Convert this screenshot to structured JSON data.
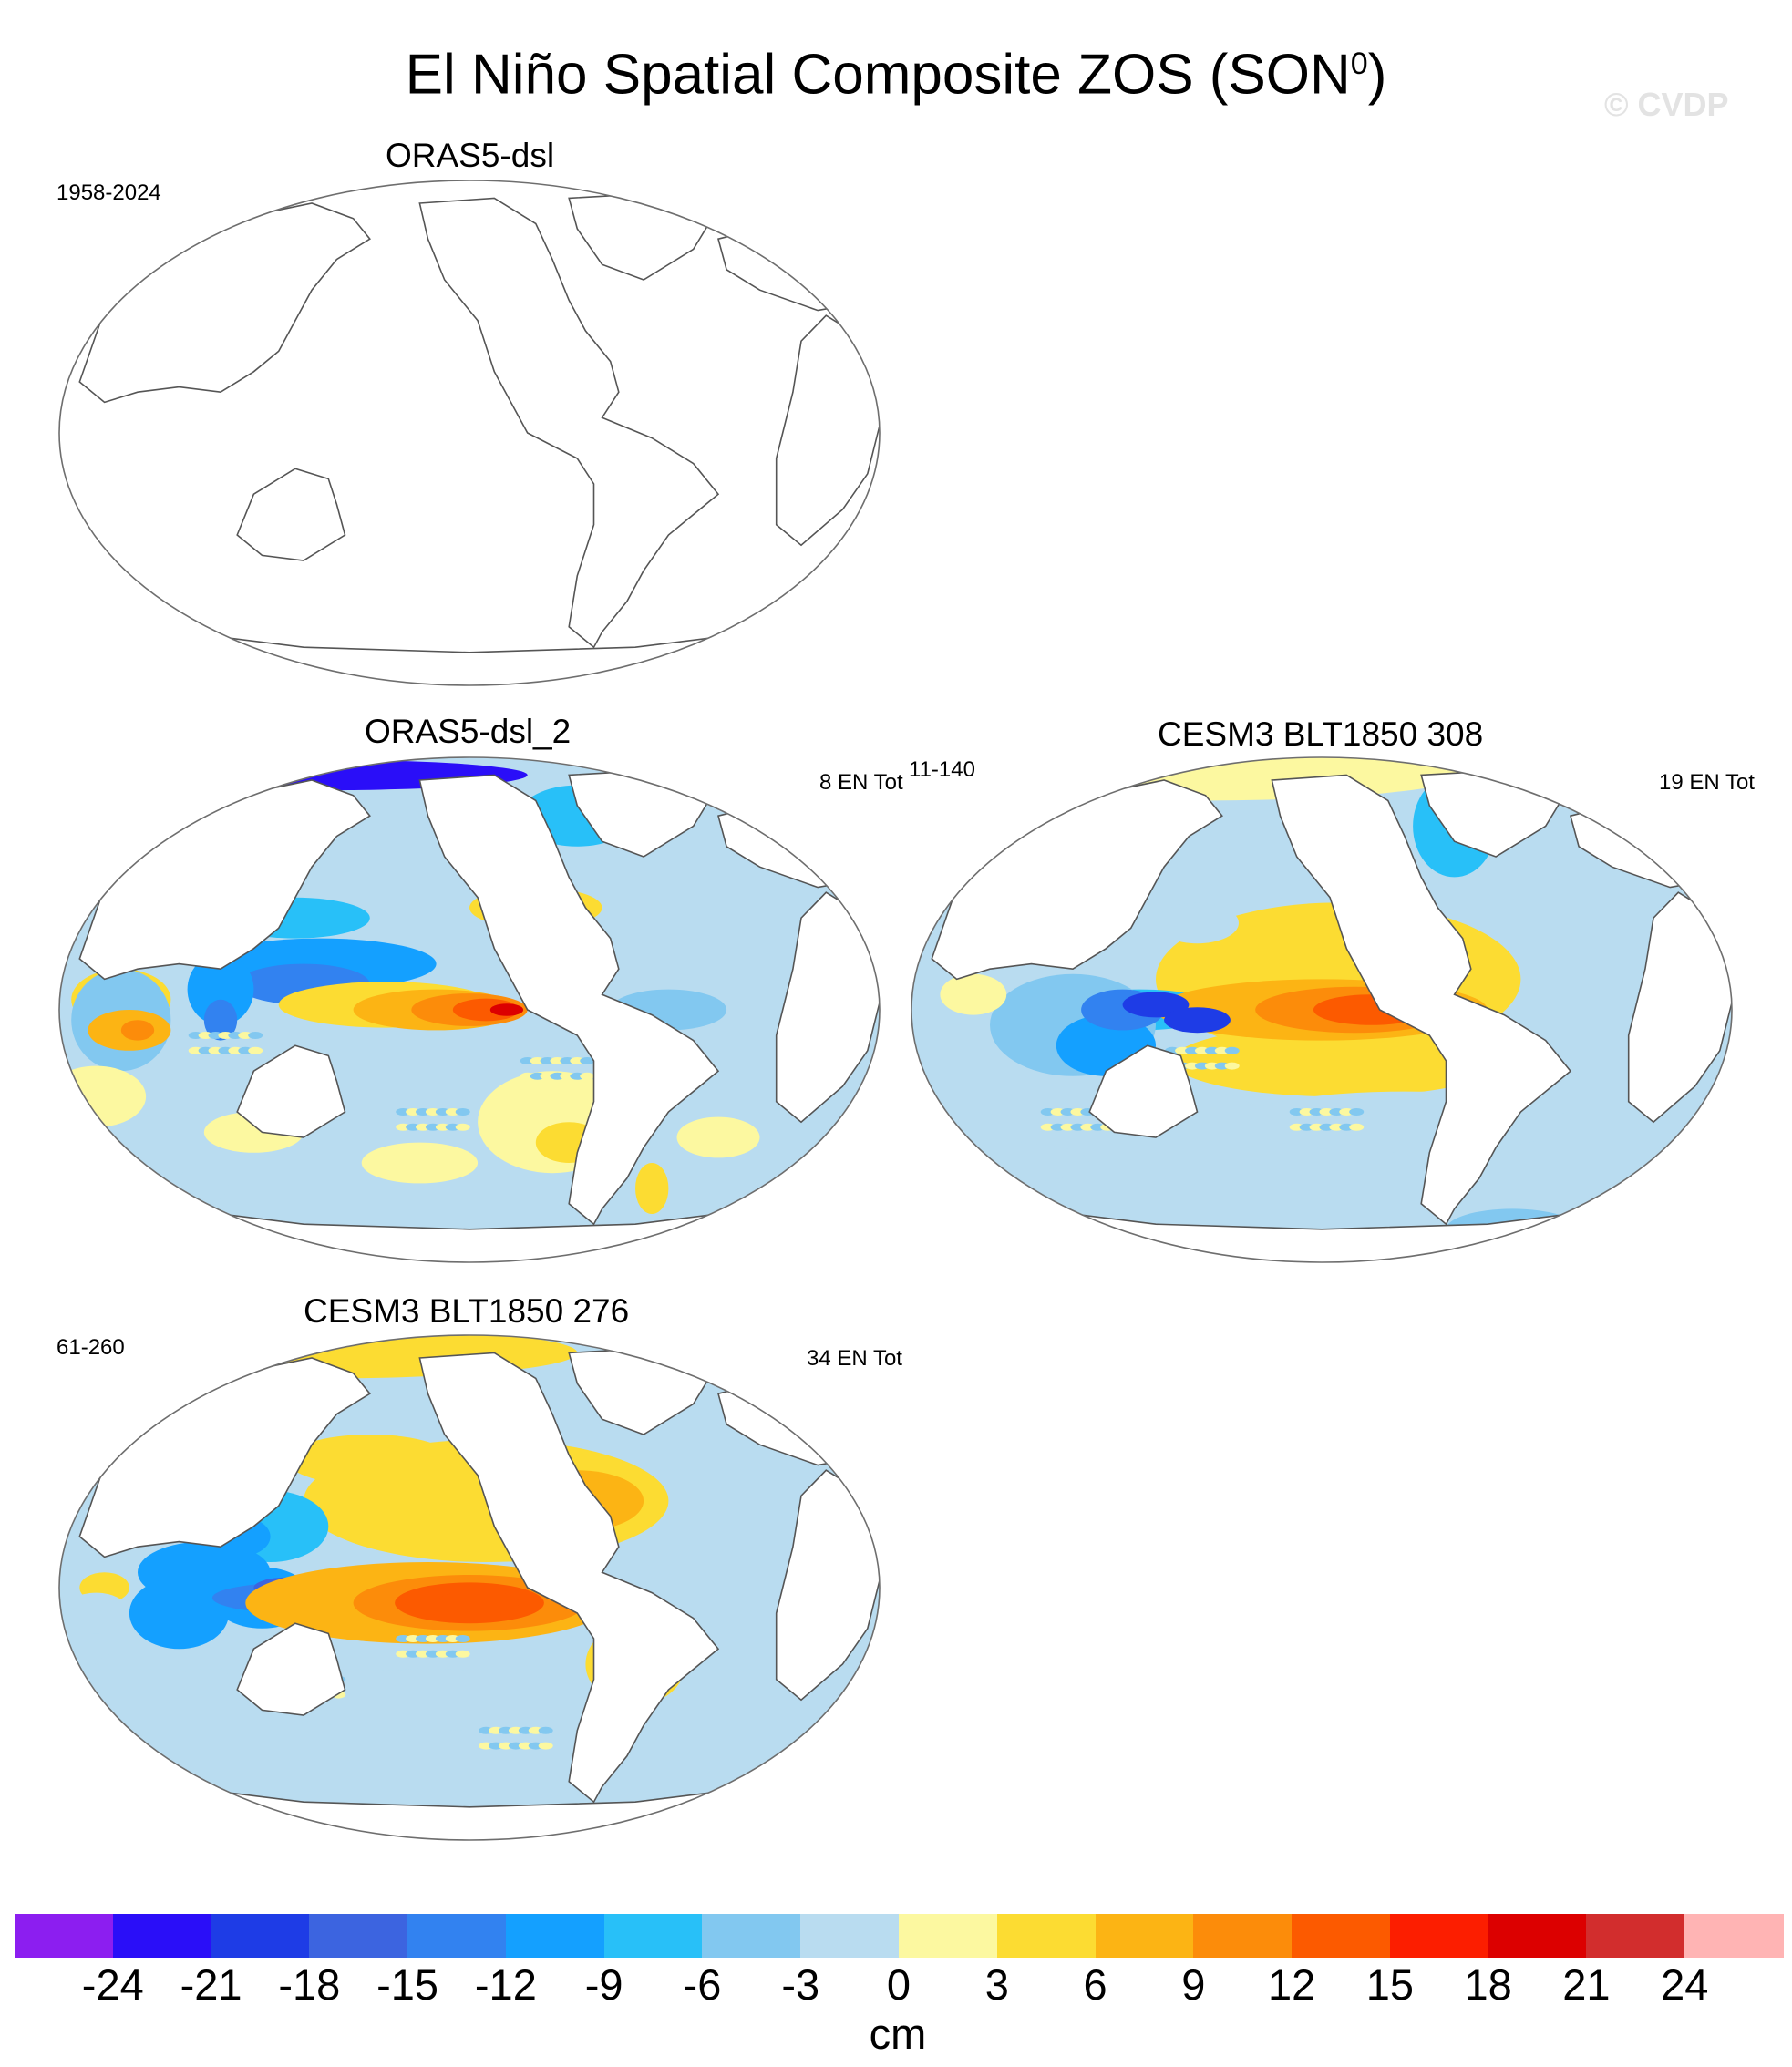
{
  "title": "El Niño Spatial Composite ZOS (SON",
  "title_sup": "0",
  "title_close": ")",
  "watermark": "© CVDP",
  "panels": [
    {
      "title": "ORAS5-dsl",
      "left_note": "1958-2024",
      "right_note": "",
      "filled": false
    },
    {
      "title": "ORAS5-dsl_2",
      "left_note": "",
      "right_note": "8 EN Tot",
      "filled": true
    },
    {
      "title": "CESM3 BLT1850 308",
      "left_note": "11-140",
      "right_note": "19 EN Tot",
      "filled": true
    },
    {
      "title": "CESM3 BLT1850 276",
      "left_note": "61-260",
      "right_note": "34 EN Tot",
      "filled": true
    }
  ],
  "colorbar": {
    "unit": "cm",
    "ticks": [
      "-24",
      "-21",
      "-18",
      "-15",
      "-12",
      "-9",
      "-6",
      "-3",
      "0",
      "3",
      "6",
      "9",
      "12",
      "15",
      "18",
      "21",
      "24"
    ],
    "colors": [
      "#8c1ef0",
      "#2a0ef8",
      "#1e3ce6",
      "#3c64e0",
      "#3282f0",
      "#14a0ff",
      "#28c0f8",
      "#82c8f0",
      "#b9dcf0",
      "#fcf8a0",
      "#fcdc32",
      "#fcb414",
      "#fc8c0a",
      "#fc5a00",
      "#fc1e00",
      "#dc0000",
      "#d22d2d",
      "#ffb4b4"
    ]
  },
  "colors": {
    "land": "#ffffff",
    "outline": "#6e6e6e",
    "coast": "#555555"
  }
}
